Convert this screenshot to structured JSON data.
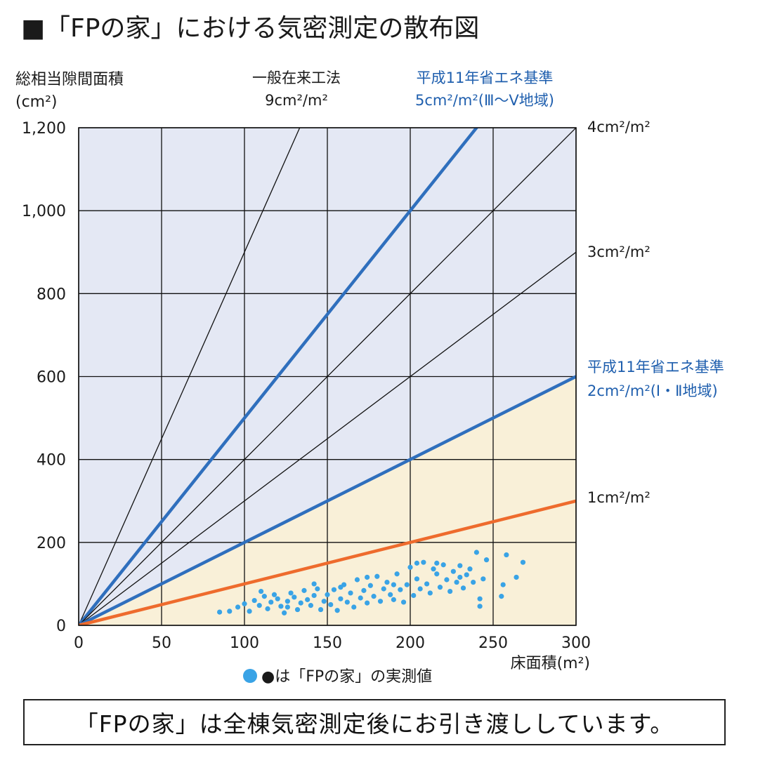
{
  "title": "■「FPの家」における気密測定の散布図",
  "y_axis_title": "総相当隙間面積",
  "y_axis_unit": "(cm²)",
  "x_axis_title": "床面積(m²)",
  "legend": "●は「FPの家」の実測値",
  "footer": "「FPの家」は全棟気密測定後にお引き渡ししています。",
  "colors": {
    "plot_background": "#e4e8f4",
    "shaded_area": "#f9f0d8",
    "grid": "#111111",
    "standard_line": "#2f6fbd",
    "orange_line": "#ee6b2d",
    "data_points": "#39a3e6",
    "blue_text": "#1f5fae"
  },
  "chart_data": {
    "type": "scatter",
    "xlim": [
      0,
      300
    ],
    "ylim": [
      0,
      1200
    ],
    "x_ticks": [
      "0",
      "50",
      "100",
      "150",
      "200",
      "250",
      "300"
    ],
    "y_ticks": [
      "0",
      "200",
      "400",
      "600",
      "800",
      "1,000",
      "1,200"
    ],
    "grid": true,
    "reference_lines": [
      {
        "slope": 9,
        "style": "thin-black",
        "label": [
          "一般在来工法",
          "9cm²/m²"
        ]
      },
      {
        "slope": 5,
        "style": "thick-blue",
        "label": [
          "平成11年省エネ基準",
          "5cm²/m²(Ⅲ〜Ⅴ地域)"
        ]
      },
      {
        "slope": 4,
        "style": "thin-black",
        "label": [
          "4cm²/m²"
        ]
      },
      {
        "slope": 3,
        "style": "thin-black",
        "label": [
          "3cm²/m²"
        ]
      },
      {
        "slope": 2,
        "style": "thick-blue",
        "label": [
          "平成11年省エネ基準",
          "2cm²/m²(Ⅰ・Ⅱ地域)"
        ]
      },
      {
        "slope": 1,
        "style": "thick-orange",
        "label": [
          "1cm²/m²"
        ]
      }
    ],
    "series": [
      {
        "points": [
          [
            85,
            32
          ],
          [
            91,
            34
          ],
          [
            96,
            44
          ],
          [
            100,
            52
          ],
          [
            103,
            34
          ],
          [
            106,
            60
          ],
          [
            109,
            48
          ],
          [
            112,
            70
          ],
          [
            114,
            40
          ],
          [
            116,
            56
          ],
          [
            118,
            74
          ],
          [
            120,
            64
          ],
          [
            122,
            46
          ],
          [
            124,
            30
          ],
          [
            126,
            58
          ],
          [
            128,
            78
          ],
          [
            130,
            68
          ],
          [
            132,
            38
          ],
          [
            134,
            54
          ],
          [
            136,
            84
          ],
          [
            138,
            62
          ],
          [
            140,
            48
          ],
          [
            142,
            72
          ],
          [
            144,
            88
          ],
          [
            146,
            38
          ],
          [
            148,
            58
          ],
          [
            150,
            74
          ],
          [
            152,
            50
          ],
          [
            154,
            86
          ],
          [
            156,
            36
          ],
          [
            158,
            64
          ],
          [
            160,
            98
          ],
          [
            162,
            56
          ],
          [
            164,
            78
          ],
          [
            166,
            44
          ],
          [
            168,
            110
          ],
          [
            170,
            66
          ],
          [
            172,
            84
          ],
          [
            174,
            54
          ],
          [
            176,
            96
          ],
          [
            178,
            70
          ],
          [
            180,
            118
          ],
          [
            182,
            58
          ],
          [
            184,
            88
          ],
          [
            186,
            104
          ],
          [
            188,
            74
          ],
          [
            190,
            62
          ],
          [
            192,
            124
          ],
          [
            194,
            86
          ],
          [
            196,
            56
          ],
          [
            198,
            98
          ],
          [
            200,
            140
          ],
          [
            202,
            72
          ],
          [
            204,
            112
          ],
          [
            206,
            88
          ],
          [
            208,
            152
          ],
          [
            210,
            100
          ],
          [
            212,
            78
          ],
          [
            214,
            136
          ],
          [
            216,
            124
          ],
          [
            218,
            92
          ],
          [
            220,
            146
          ],
          [
            222,
            110
          ],
          [
            224,
            82
          ],
          [
            226,
            130
          ],
          [
            228,
            104
          ],
          [
            230,
            144
          ],
          [
            232,
            90
          ],
          [
            234,
            122
          ],
          [
            236,
            136
          ],
          [
            238,
            104
          ],
          [
            240,
            176
          ],
          [
            242,
            46
          ],
          [
            244,
            112
          ],
          [
            246,
            158
          ],
          [
            255,
            70
          ],
          [
            256,
            98
          ],
          [
            258,
            170
          ],
          [
            264,
            116
          ],
          [
            268,
            152
          ],
          [
            110,
            82
          ],
          [
            126,
            44
          ],
          [
            142,
            100
          ],
          [
            158,
            92
          ],
          [
            174,
            116
          ],
          [
            190,
            98
          ],
          [
            204,
            150
          ],
          [
            216,
            150
          ],
          [
            230,
            116
          ],
          [
            242,
            64
          ]
        ]
      }
    ]
  }
}
